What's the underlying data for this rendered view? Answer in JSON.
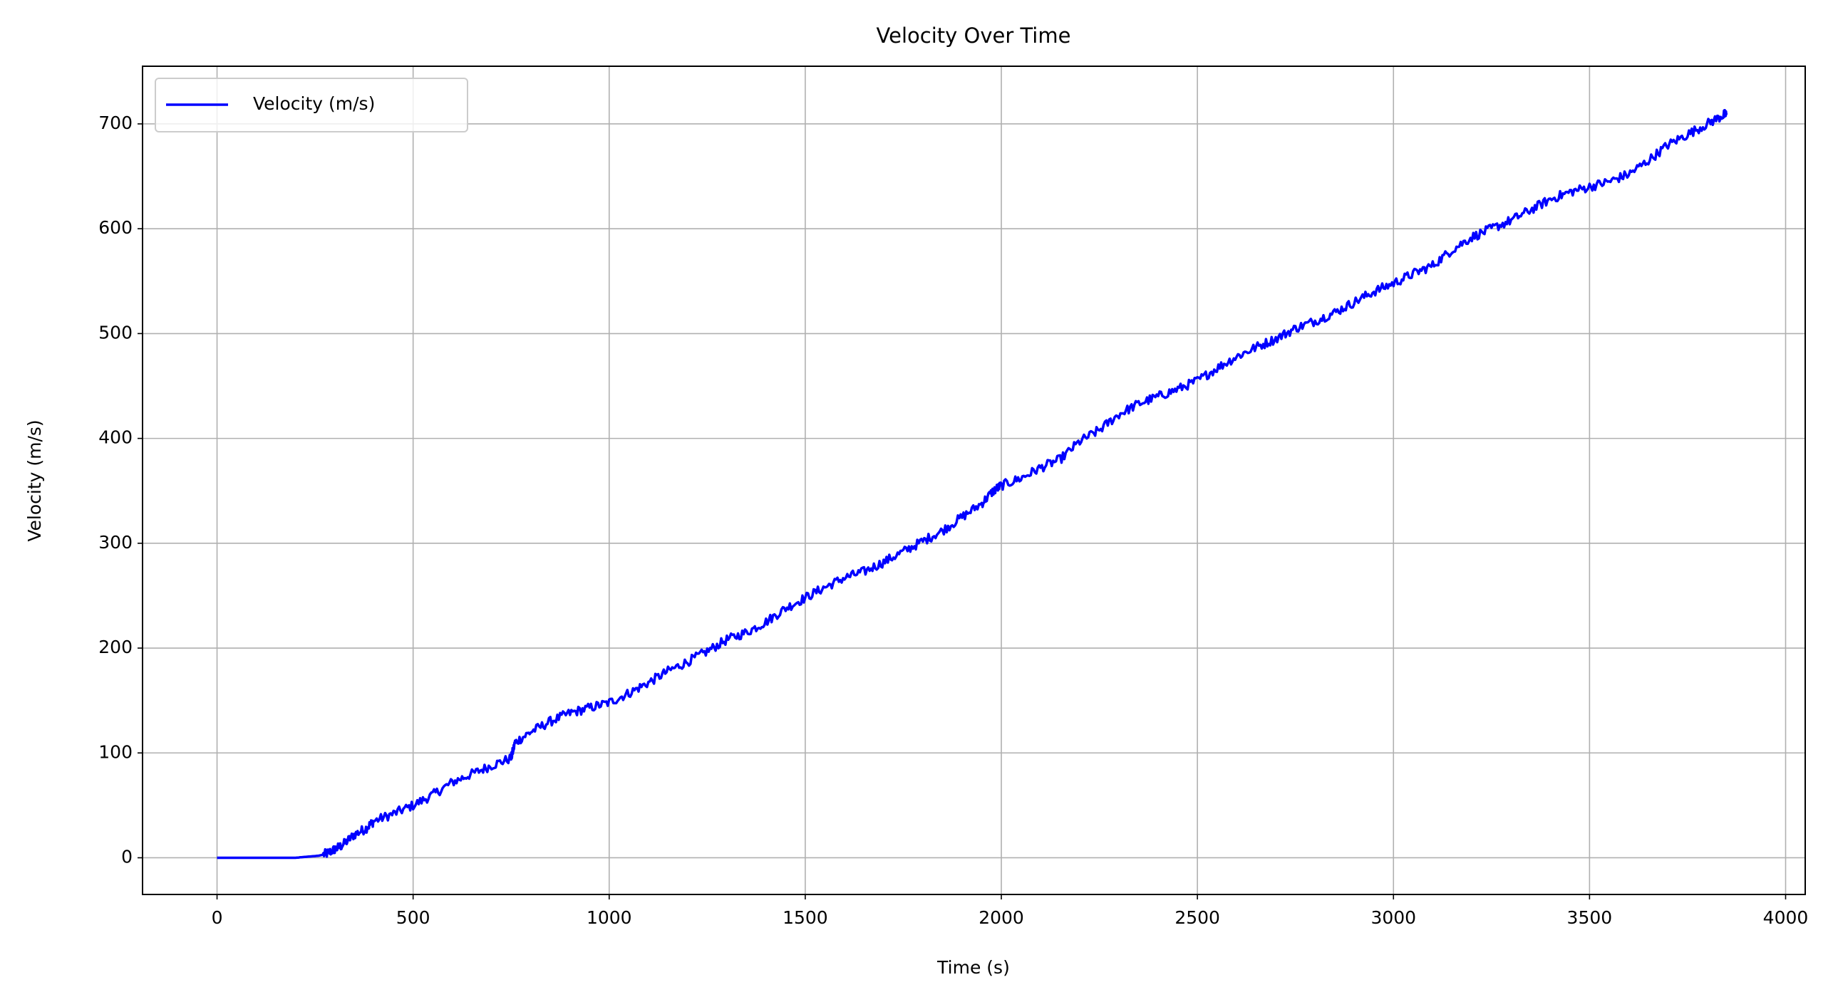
{
  "chart_data": {
    "type": "line",
    "title": "Velocity Over Time",
    "xlabel": "Time (s)",
    "ylabel": "Velocity (m/s)",
    "xlim": [
      -190,
      4050
    ],
    "ylim": [
      -35,
      755
    ],
    "xticks": [
      0,
      500,
      1000,
      1500,
      2000,
      2500,
      3000,
      3500,
      4000
    ],
    "yticks": [
      0,
      100,
      200,
      300,
      400,
      500,
      600,
      700
    ],
    "grid": true,
    "legend_position": "top-left",
    "series": [
      {
        "name": "Velocity (m/s)",
        "color": "#0000ff",
        "x": [
          0,
          100,
          200,
          230,
          260,
          280,
          300,
          320,
          350,
          380,
          400,
          450,
          500,
          550,
          600,
          650,
          700,
          750,
          760,
          800,
          850,
          900,
          950,
          1000,
          1050,
          1100,
          1150,
          1200,
          1250,
          1300,
          1350,
          1400,
          1450,
          1500,
          1550,
          1600,
          1650,
          1700,
          1750,
          1800,
          1850,
          1900,
          1950,
          1980,
          2000,
          2050,
          2100,
          2150,
          2200,
          2250,
          2300,
          2350,
          2400,
          2450,
          2500,
          2550,
          2600,
          2650,
          2700,
          2750,
          2800,
          2850,
          2900,
          2950,
          3000,
          3050,
          3100,
          3150,
          3200,
          3250,
          3300,
          3350,
          3400,
          3450,
          3500,
          3550,
          3600,
          3650,
          3700,
          3750,
          3800,
          3840,
          3850
        ],
        "y": [
          0,
          0,
          0,
          1,
          2,
          4,
          8,
          12,
          22,
          28,
          35,
          42,
          50,
          60,
          72,
          80,
          88,
          95,
          110,
          120,
          130,
          138,
          143,
          148,
          157,
          167,
          178,
          187,
          197,
          208,
          215,
          225,
          238,
          248,
          258,
          267,
          273,
          282,
          292,
          302,
          312,
          325,
          338,
          350,
          355,
          362,
          372,
          380,
          397,
          408,
          423,
          433,
          440,
          447,
          455,
          467,
          478,
          487,
          495,
          505,
          512,
          520,
          530,
          540,
          548,
          557,
          565,
          580,
          592,
          600,
          608,
          618,
          628,
          635,
          640,
          645,
          652,
          665,
          680,
          690,
          700,
          708,
          710
        ]
      }
    ]
  }
}
